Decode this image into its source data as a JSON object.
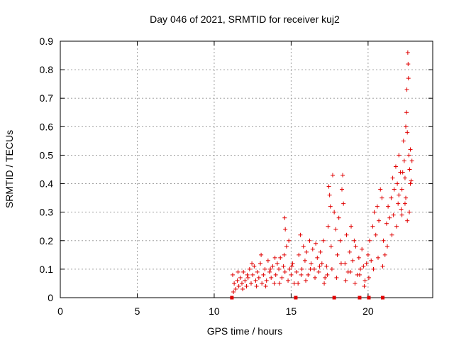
{
  "chart_data": {
    "type": "scatter",
    "title": "Day 046 of 2021, SRMTID for receiver kuj2",
    "xlabel": "GPS time / hours",
    "ylabel": "SRMTID / TECUs",
    "xlim": [
      0,
      24.2
    ],
    "ylim": [
      0,
      0.9
    ],
    "xticks": [
      0,
      5,
      10,
      15,
      20
    ],
    "xtick_labels": [
      "0",
      "5",
      "10",
      "15",
      "20"
    ],
    "yticks": [
      0,
      0.1,
      0.2,
      0.3,
      0.4,
      0.5,
      0.6,
      0.7,
      0.8,
      0.9
    ],
    "ytick_labels": [
      "0",
      "0.1",
      "0.2",
      "0.3",
      "0.4",
      "0.5",
      "0.6",
      "0.7",
      "0.8",
      "0.9"
    ],
    "grid": true,
    "marker": "+",
    "color": "#e00000",
    "zero_markers_x": [
      11.15,
      15.3,
      17.8,
      19.45,
      20.05,
      20.95
    ],
    "series": [
      {
        "name": "SRMTID",
        "points": [
          [
            11.2,
            0.08
          ],
          [
            11.3,
            0.05
          ],
          [
            11.4,
            0.03
          ],
          [
            11.5,
            0.06
          ],
          [
            11.6,
            0.04
          ],
          [
            11.7,
            0.07
          ],
          [
            11.8,
            0.05
          ],
          [
            11.9,
            0.09
          ],
          [
            12.0,
            0.06
          ],
          [
            12.1,
            0.04
          ],
          [
            12.2,
            0.07
          ],
          [
            12.3,
            0.1
          ],
          [
            12.4,
            0.05
          ],
          [
            12.5,
            0.08
          ],
          [
            12.6,
            0.11
          ],
          [
            12.7,
            0.06
          ],
          [
            12.8,
            0.09
          ],
          [
            12.9,
            0.07
          ],
          [
            13.0,
            0.12
          ],
          [
            13.1,
            0.05
          ],
          [
            13.2,
            0.08
          ],
          [
            13.3,
            0.1
          ],
          [
            13.4,
            0.06
          ],
          [
            13.5,
            0.13
          ],
          [
            13.6,
            0.09
          ],
          [
            13.7,
            0.07
          ],
          [
            13.8,
            0.11
          ],
          [
            13.9,
            0.05
          ],
          [
            14.0,
            0.08
          ],
          [
            14.1,
            0.12
          ],
          [
            14.2,
            0.1
          ],
          [
            14.3,
            0.14
          ],
          [
            14.4,
            0.07
          ],
          [
            14.5,
            0.11
          ],
          [
            14.6,
            0.09
          ],
          [
            14.7,
            0.18
          ],
          [
            14.8,
            0.06
          ],
          [
            14.9,
            0.1
          ],
          [
            15.0,
            0.08
          ],
          [
            15.1,
            0.12
          ],
          [
            11.25,
            0.02
          ],
          [
            11.55,
            0.09
          ],
          [
            11.85,
            0.03
          ],
          [
            12.15,
            0.08
          ],
          [
            12.45,
            0.12
          ],
          [
            12.75,
            0.04
          ],
          [
            13.05,
            0.15
          ],
          [
            13.35,
            0.04
          ],
          [
            13.65,
            0.1
          ],
          [
            13.95,
            0.14
          ],
          [
            14.25,
            0.05
          ],
          [
            14.55,
            0.15
          ],
          [
            14.58,
            0.28
          ],
          [
            14.62,
            0.24
          ],
          [
            14.85,
            0.2
          ],
          [
            15.05,
            0.11
          ],
          [
            15.2,
            0.05
          ],
          [
            15.35,
            0.09
          ],
          [
            15.5,
            0.15
          ],
          [
            15.6,
            0.22
          ],
          [
            15.7,
            0.1
          ],
          [
            15.8,
            0.18
          ],
          [
            15.9,
            0.13
          ],
          [
            16.0,
            0.16
          ],
          [
            16.1,
            0.08
          ],
          [
            16.2,
            0.2
          ],
          [
            16.3,
            0.12
          ],
          [
            16.4,
            0.17
          ],
          [
            16.5,
            0.1
          ],
          [
            16.6,
            0.19
          ],
          [
            16.7,
            0.14
          ],
          [
            16.8,
            0.09
          ],
          [
            16.9,
            0.16
          ],
          [
            17.0,
            0.12
          ],
          [
            17.1,
            0.2
          ],
          [
            17.2,
            0.07
          ],
          [
            17.3,
            0.11
          ],
          [
            17.4,
            0.25
          ],
          [
            17.45,
            0.39
          ],
          [
            17.5,
            0.36
          ],
          [
            17.55,
            0.32
          ],
          [
            17.6,
            0.18
          ],
          [
            17.7,
            0.43
          ],
          [
            17.8,
            0.3
          ],
          [
            17.9,
            0.24
          ],
          [
            18.0,
            0.15
          ],
          [
            18.1,
            0.28
          ],
          [
            18.2,
            0.2
          ],
          [
            18.3,
            0.38
          ],
          [
            18.35,
            0.43
          ],
          [
            18.4,
            0.33
          ],
          [
            18.5,
            0.12
          ],
          [
            18.6,
            0.22
          ],
          [
            18.7,
            0.09
          ],
          [
            18.8,
            0.16
          ],
          [
            18.9,
            0.25
          ],
          [
            19.0,
            0.13
          ],
          [
            19.1,
            0.2
          ],
          [
            19.2,
            0.18
          ],
          [
            19.3,
            0.08
          ],
          [
            19.4,
            0.14
          ],
          [
            19.5,
            0.1
          ],
          [
            19.6,
            0.17
          ],
          [
            19.7,
            0.11
          ],
          [
            19.8,
            0.06
          ],
          [
            19.9,
            0.12
          ],
          [
            20.0,
            0.15
          ],
          [
            20.1,
            0.2
          ],
          [
            20.2,
            0.13
          ],
          [
            20.3,
            0.25
          ],
          [
            20.4,
            0.3
          ],
          [
            20.5,
            0.22
          ],
          [
            20.6,
            0.32
          ],
          [
            20.7,
            0.27
          ],
          [
            20.8,
            0.38
          ],
          [
            20.9,
            0.35
          ],
          [
            21.0,
            0.2
          ],
          [
            21.1,
            0.15
          ],
          [
            21.2,
            0.26
          ],
          [
            21.3,
            0.32
          ],
          [
            21.4,
            0.28
          ],
          [
            21.5,
            0.35
          ],
          [
            21.6,
            0.42
          ],
          [
            21.7,
            0.38
          ],
          [
            21.8,
            0.46
          ],
          [
            21.9,
            0.4
          ],
          [
            22.0,
            0.5
          ],
          [
            22.1,
            0.44
          ],
          [
            22.2,
            0.38
          ],
          [
            22.3,
            0.55
          ],
          [
            22.35,
            0.48
          ],
          [
            22.4,
            0.42
          ],
          [
            22.45,
            0.6
          ],
          [
            22.5,
            0.65
          ],
          [
            22.52,
            0.73
          ],
          [
            22.55,
            0.58
          ],
          [
            22.58,
            0.86
          ],
          [
            22.6,
            0.82
          ],
          [
            22.62,
            0.77
          ],
          [
            22.65,
            0.5
          ],
          [
            22.7,
            0.45
          ],
          [
            22.75,
            0.52
          ],
          [
            22.8,
            0.41
          ],
          [
            22.68,
            0.3
          ],
          [
            22.55,
            0.27
          ],
          [
            22.4,
            0.33
          ],
          [
            22.2,
            0.29
          ],
          [
            22.0,
            0.36
          ],
          [
            15.45,
            0.05
          ],
          [
            15.65,
            0.08
          ],
          [
            15.95,
            0.06
          ],
          [
            16.25,
            0.1
          ],
          [
            16.55,
            0.07
          ],
          [
            16.85,
            0.11
          ],
          [
            17.15,
            0.05
          ],
          [
            17.35,
            0.08
          ],
          [
            17.65,
            0.1
          ],
          [
            17.95,
            0.07
          ],
          [
            18.25,
            0.12
          ],
          [
            18.55,
            0.06
          ],
          [
            18.85,
            0.09
          ],
          [
            19.15,
            0.05
          ],
          [
            19.45,
            0.08
          ],
          [
            19.75,
            0.04
          ],
          [
            20.05,
            0.07
          ],
          [
            20.35,
            0.1
          ],
          [
            20.65,
            0.14
          ],
          [
            20.95,
            0.11
          ],
          [
            21.25,
            0.18
          ],
          [
            21.55,
            0.22
          ],
          [
            21.85,
            0.25
          ],
          [
            22.15,
            0.31
          ],
          [
            22.45,
            0.35
          ],
          [
            22.75,
            0.4
          ],
          [
            22.85,
            0.48
          ],
          [
            22.25,
            0.44
          ],
          [
            21.95,
            0.33
          ],
          [
            21.65,
            0.29
          ]
        ]
      }
    ]
  }
}
